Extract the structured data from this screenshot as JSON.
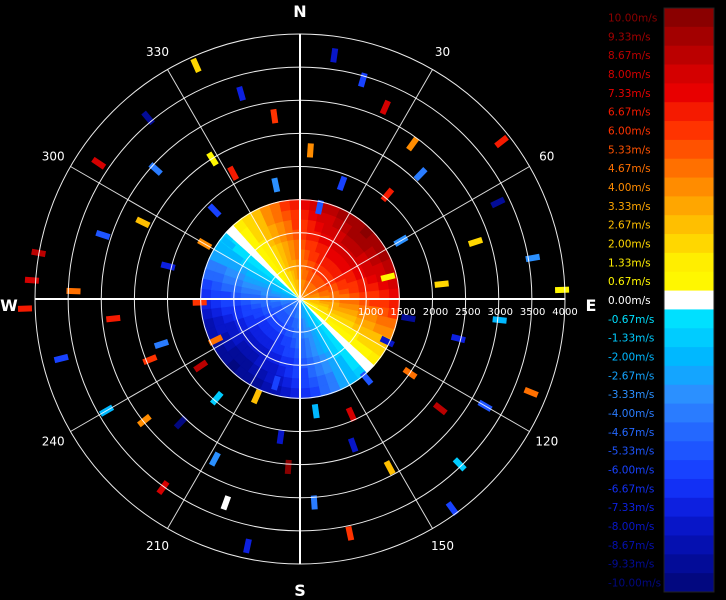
{
  "chart_data": {
    "type": "polar-radial-velocity-plot",
    "cardinals": {
      "north": "N",
      "east": "E",
      "south": "S",
      "west": "W"
    },
    "azimuth_labels": [
      "30",
      "60",
      "120",
      "150",
      "210",
      "240",
      "300",
      "330"
    ],
    "azimuth_label_degrees": [
      30,
      60,
      120,
      150,
      210,
      240,
      300,
      330
    ],
    "range_labels": [
      "1000",
      "1500",
      "2000",
      "2500",
      "3000",
      "3500",
      "4000"
    ],
    "range_label_values": [
      1000,
      1500,
      2000,
      2500,
      3000,
      3500,
      4000
    ],
    "range_max": 4000,
    "ring_count": 8,
    "center_scan": {
      "max_range": 1200,
      "velocity_near": 10,
      "velocity_far": -10
    },
    "colorbar": {
      "labels": [
        "10.00m/s",
        "9.33m/s",
        "8.67m/s",
        "8.00m/s",
        "7.33m/s",
        "6.67m/s",
        "6.00m/s",
        "5.33m/s",
        "4.67m/s",
        "4.00m/s",
        "3.33m/s",
        "2.67m/s",
        "2.00m/s",
        "1.33m/s",
        "0.67m/s",
        "0.00m/s",
        "-0.67m/s",
        "-1.33m/s",
        "-2.00m/s",
        "-2.67m/s",
        "-3.33m/s",
        "-4.00m/s",
        "-4.67m/s",
        "-5.33m/s",
        "-6.00m/s",
        "-6.67m/s",
        "-7.33m/s",
        "-8.00m/s",
        "-8.67m/s",
        "-9.33m/s",
        "-10.00m/s"
      ],
      "colors": [
        "#8a0000",
        "#a30000",
        "#bb0000",
        "#d40000",
        "#e80000",
        "#f51a00",
        "#ff3300",
        "#ff5200",
        "#ff7000",
        "#ff8c00",
        "#ffa600",
        "#ffbf00",
        "#ffd700",
        "#ffee00",
        "#fff700",
        "#ffffff",
        "#00e0ff",
        "#00ccff",
        "#00b8ff",
        "#14a5ff",
        "#2b90ff",
        "#2a7cff",
        "#2468ff",
        "#1e55ff",
        "#1842ff",
        "#1230f5",
        "#0d20e0",
        "#0816c8",
        "#0510b0",
        "#030c98",
        "#020880"
      ]
    },
    "gates": [
      {
        "az": 8,
        "r": 3800,
        "v": -8
      },
      {
        "az": 16,
        "r": 3520,
        "v": -6
      },
      {
        "az": 24,
        "r": 3240,
        "v": 8
      },
      {
        "az": 36,
        "r": 2960,
        "v": 4
      },
      {
        "az": 44,
        "r": 2680,
        "v": -4
      },
      {
        "az": 52,
        "r": 3950,
        "v": 7
      },
      {
        "az": 64,
        "r": 3400,
        "v": -9
      },
      {
        "az": 72,
        "r": 2850,
        "v": 2
      },
      {
        "az": 80,
        "r": 3650,
        "v": -3
      },
      {
        "az": 88,
        "r": 4050,
        "v": 1
      },
      {
        "az": 96,
        "r": 3100,
        "v": -2
      },
      {
        "az": 104,
        "r": 2520,
        "v": -7
      },
      {
        "az": 112,
        "r": 3850,
        "v": 5
      },
      {
        "az": 120,
        "r": 3300,
        "v": -5
      },
      {
        "az": 128,
        "r": 2750,
        "v": 9
      },
      {
        "az": 136,
        "r": 3550,
        "v": -1
      },
      {
        "az": 144,
        "r": 4000,
        "v": -6
      },
      {
        "az": 152,
        "r": 2950,
        "v": 3
      },
      {
        "az": 160,
        "r": 2400,
        "v": -8
      },
      {
        "az": 168,
        "r": 3700,
        "v": 6
      },
      {
        "az": 176,
        "r": 3150,
        "v": -4
      },
      {
        "az": 184,
        "r": 2600,
        "v": 10
      },
      {
        "az": 192,
        "r": 3900,
        "v": -7
      },
      {
        "az": 200,
        "r": 3350,
        "v": 0
      },
      {
        "az": 208,
        "r": 2800,
        "v": -3
      },
      {
        "az": 216,
        "r": 3600,
        "v": 8
      },
      {
        "az": 224,
        "r": 2650,
        "v": -10
      },
      {
        "az": 232,
        "r": 3050,
        "v": 4
      },
      {
        "az": 240,
        "r": 3450,
        "v": -2
      },
      {
        "az": 248,
        "r": 2500,
        "v": 6
      },
      {
        "az": 256,
        "r": 3800,
        "v": -6
      },
      {
        "az": 264,
        "r": 2900,
        "v": 7
      },
      {
        "az": 272,
        "r": 3500,
        "v": 5
      },
      {
        "az": 280,
        "r": 4100,
        "v": 9
      },
      {
        "az": 288,
        "r": 3200,
        "v": -5
      },
      {
        "az": 296,
        "r": 2700,
        "v": 3
      },
      {
        "az": 304,
        "r": 3750,
        "v": 8
      },
      {
        "az": 312,
        "r": 3000,
        "v": -4
      },
      {
        "az": 320,
        "r": 3650,
        "v": -9
      },
      {
        "az": 328,
        "r": 2550,
        "v": 1
      },
      {
        "az": 336,
        "r": 3950,
        "v": 2
      },
      {
        "az": 344,
        "r": 3300,
        "v": -7
      },
      {
        "az": 352,
        "r": 2850,
        "v": 6
      },
      {
        "az": 4,
        "r": 2300,
        "v": 4
      },
      {
        "az": 20,
        "r": 1900,
        "v": -6
      },
      {
        "az": 40,
        "r": 2100,
        "v": 7
      },
      {
        "az": 60,
        "r": 1800,
        "v": -3
      },
      {
        "az": 84,
        "r": 2200,
        "v": 2
      },
      {
        "az": 100,
        "r": 1700,
        "v": -9
      },
      {
        "az": 124,
        "r": 2050,
        "v": 5
      },
      {
        "az": 140,
        "r": 1600,
        "v": -5
      },
      {
        "az": 156,
        "r": 1950,
        "v": 8
      },
      {
        "az": 172,
        "r": 1750,
        "v": -2
      },
      {
        "az": 188,
        "r": 2150,
        "v": -8
      },
      {
        "az": 204,
        "r": 1650,
        "v": 3
      },
      {
        "az": 220,
        "r": 2000,
        "v": -1
      },
      {
        "az": 236,
        "r": 1850,
        "v": 9
      },
      {
        "az": 252,
        "r": 2250,
        "v": -4
      },
      {
        "az": 268,
        "r": 1550,
        "v": 6
      },
      {
        "az": 284,
        "r": 2100,
        "v": -7
      },
      {
        "az": 300,
        "r": 1700,
        "v": 4
      },
      {
        "az": 316,
        "r": 1900,
        "v": -6
      },
      {
        "az": 332,
        "r": 2200,
        "v": 7
      },
      {
        "az": 348,
        "r": 1800,
        "v": -3
      },
      {
        "az": 12,
        "r": 1450,
        "v": -5
      },
      {
        "az": 76,
        "r": 1400,
        "v": 1
      },
      {
        "az": 116,
        "r": 1500,
        "v": -8
      },
      {
        "az": 196,
        "r": 1350,
        "v": -6
      },
      {
        "az": 244,
        "r": 1450,
        "v": 5
      },
      {
        "az": 308,
        "r": 1400,
        "v": -2
      },
      {
        "az": 268,
        "r": 4250,
        "v": 7
      },
      {
        "az": 274,
        "r": 4150,
        "v": 8
      }
    ]
  }
}
